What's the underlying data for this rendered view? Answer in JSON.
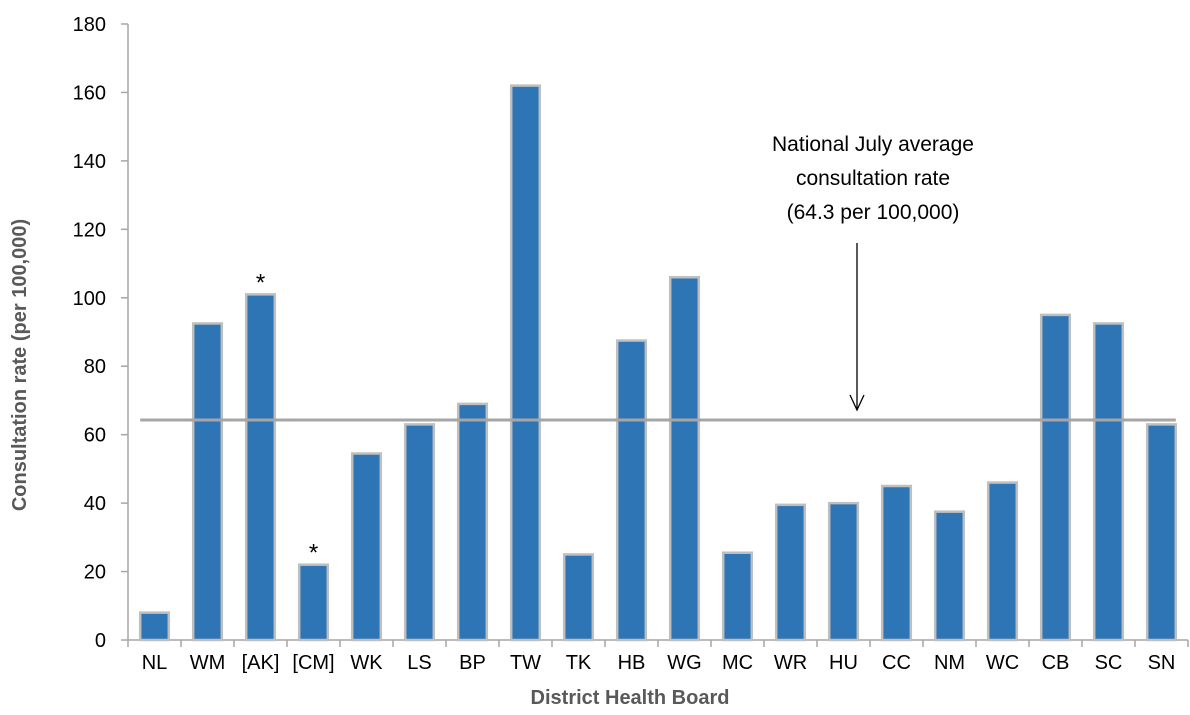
{
  "chart_data": {
    "type": "bar",
    "xlabel": "District Health Board",
    "ylabel": "Consultation rate (per 100,000)",
    "ylim": [
      0,
      180
    ],
    "yticks": [
      0,
      20,
      40,
      60,
      80,
      100,
      120,
      140,
      160,
      180
    ],
    "categories": [
      "NL",
      "WM",
      "[AK]",
      "[CM]",
      "WK",
      "LS",
      "BP",
      "TW",
      "TK",
      "HB",
      "WG",
      "MC",
      "WR",
      "HU",
      "CC",
      "NM",
      "WC",
      "CB",
      "SC",
      "SN"
    ],
    "values": [
      8,
      92.5,
      101,
      22,
      54.5,
      63,
      69,
      162,
      25,
      87.5,
      106,
      25.5,
      39.5,
      40,
      45,
      37.5,
      46,
      95,
      92.5,
      63
    ],
    "bar_color": "#2E75B6",
    "bar_border_color": "#BFBFBF",
    "reference_line": {
      "value": 64.3,
      "color": "#A6A6A6",
      "annotation": [
        "National  July average",
        "consultation rate",
        "(64.3 per 100,000)"
      ]
    },
    "asterisk_marked": [
      "[AK]",
      "[CM]"
    ],
    "asterisk_text": "*",
    "grid": false,
    "legend": "none"
  }
}
